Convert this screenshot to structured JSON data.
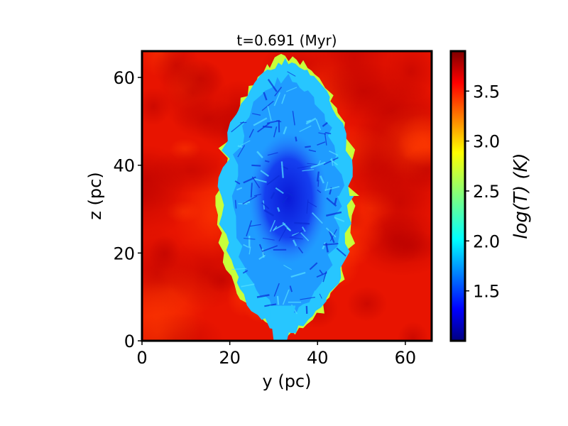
{
  "chart_data": {
    "type": "heatmap",
    "title": "t=0.691 (Myr)",
    "xlabel": "y (pc)",
    "ylabel": "z (pc)",
    "xlim": [
      0,
      66
    ],
    "ylim": [
      0,
      66
    ],
    "xticks": [
      0,
      20,
      40,
      60
    ],
    "yticks": [
      0,
      20,
      40,
      60
    ],
    "colorbar": {
      "label": "log(T) (K)",
      "range": [
        1.0,
        3.9
      ],
      "ticks": [
        "1.5",
        "2.0",
        "2.5",
        "3.0",
        "3.5"
      ],
      "colormap": "jet"
    },
    "features": {
      "background_value": 3.75,
      "cloud_center": [
        33,
        33
      ],
      "cloud_x_extent": [
        17,
        47
      ],
      "cloud_z_extent": [
        1,
        64
      ],
      "cloud_outer_value": 2.1,
      "cloud_core_value": 1.2,
      "cloud_core_z_extent": [
        20,
        45
      ]
    }
  }
}
